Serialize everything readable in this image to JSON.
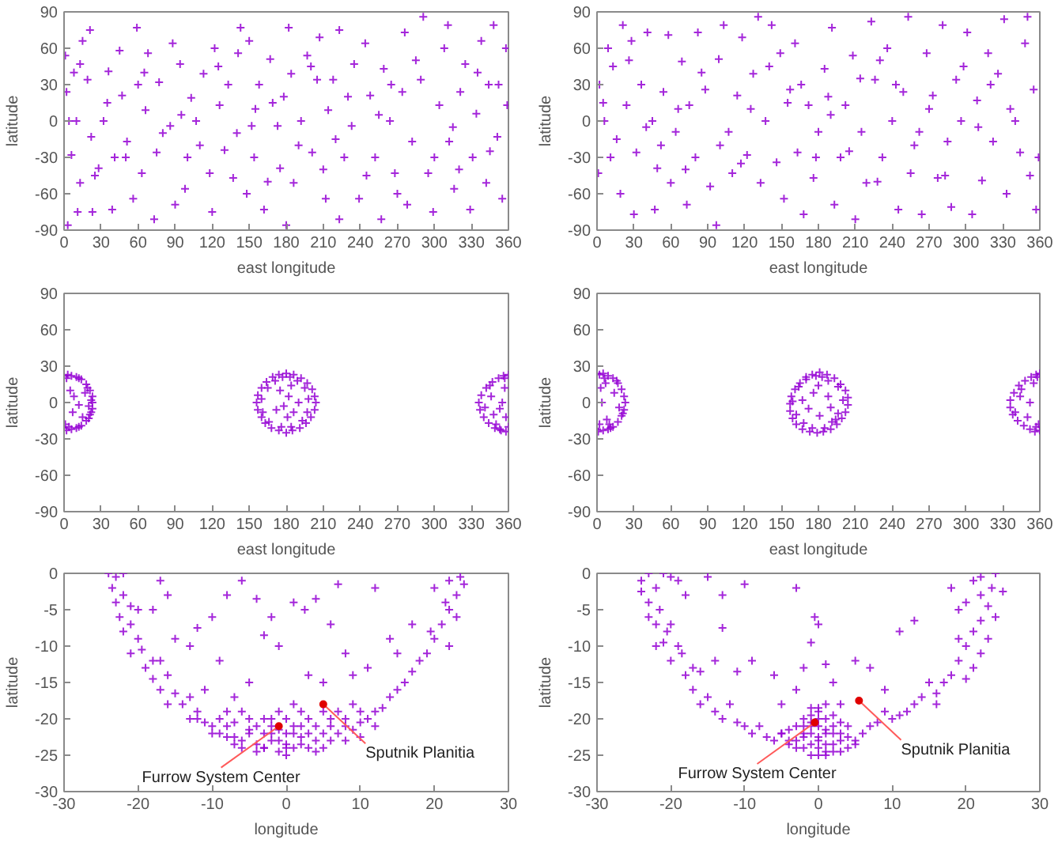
{
  "chart_data": [
    {
      "type": "scatter",
      "xlabel": "east longitude",
      "ylabel": "latitude",
      "color": "#9400d3",
      "marker": "cross",
      "xlim": [
        0,
        360
      ],
      "ylim": [
        -90,
        90
      ],
      "xticks": [
        0,
        30,
        60,
        90,
        120,
        150,
        180,
        210,
        240,
        270,
        300,
        330,
        360
      ],
      "yticks": [
        -90,
        -60,
        -30,
        0,
        30,
        60,
        90
      ],
      "x": [
        1,
        2,
        4,
        6,
        3,
        11,
        13,
        13,
        15,
        19,
        22,
        23,
        21,
        28,
        32,
        36,
        39,
        41,
        45,
        47,
        51,
        56,
        59,
        60,
        63,
        66,
        68,
        73,
        75,
        77,
        86,
        88,
        90,
        94,
        98,
        100,
        103,
        107,
        113,
        118,
        120,
        122,
        126,
        130,
        133,
        137,
        141,
        143,
        148,
        150,
        152,
        154,
        158,
        162,
        167,
        169,
        173,
        175,
        180,
        182,
        184,
        186,
        192,
        197,
        201,
        205,
        207,
        212,
        214,
        218,
        223,
        223,
        227,
        233,
        235,
        239,
        244,
        248,
        252,
        257,
        259,
        264,
        268,
        274,
        276,
        278,
        282,
        289,
        291,
        295,
        299,
        304,
        308,
        311,
        312,
        316,
        321,
        325,
        329,
        331,
        334,
        338,
        342,
        344,
        348,
        351,
        355,
        358,
        359,
        10,
        25,
        35,
        50,
        65,
        80,
        95,
        110,
        125,
        140,
        155,
        165,
        178,
        190,
        200,
        210,
        220,
        230,
        245,
        255,
        265,
        270,
        285,
        300,
        315,
        320,
        335,
        345,
        352,
        8
      ],
      "values": [
        54,
        24,
        0,
        -28,
        -86,
        -75,
        47,
        -51,
        66,
        34,
        -13,
        -75,
        75,
        -39,
        0,
        41,
        -73,
        -30,
        58,
        21,
        -17,
        -64,
        77,
        30,
        -43,
        9,
        56,
        -81,
        -26,
        32,
        -4,
        64,
        -69,
        47,
        -56,
        -30,
        19,
        0,
        39,
        -43,
        -75,
        60,
        13,
        -24,
        30,
        -47,
        56,
        77,
        -60,
        66,
        -4,
        -30,
        30,
        -73,
        51,
        15,
        -4,
        -39,
        -86,
        77,
        39,
        -51,
        0,
        54,
        -26,
        34,
        69,
        -64,
        9,
        34,
        75,
        -81,
        -30,
        -4,
        47,
        -64,
        64,
        21,
        -30,
        -81,
        43,
        0,
        -43,
        24,
        73,
        -69,
        -17,
        34,
        86,
        -43,
        -75,
        13,
        60,
        79,
        -17,
        -56,
        24,
        47,
        -73,
        -30,
        6,
        66,
        -51,
        30,
        79,
        -13,
        -64,
        60,
        13,
        0,
        -45,
        15,
        -30,
        40,
        -10,
        5,
        -20,
        45,
        -10,
        10,
        -50,
        20,
        -20,
        45,
        -40,
        -15,
        20,
        -45,
        5,
        30,
        -60,
        50,
        -30,
        -5,
        -40,
        40,
        -25,
        30,
        40
      ]
    },
    {
      "type": "scatter",
      "xlabel": "east longitude",
      "ylabel": "latitude",
      "color": "#9400d3",
      "marker": "cross",
      "xlim": [
        0,
        360
      ],
      "ylim": [
        -90,
        90
      ],
      "xticks": [
        0,
        30,
        60,
        90,
        120,
        150,
        180,
        210,
        240,
        270,
        300,
        330,
        360
      ],
      "yticks": [
        -90,
        -60,
        -30,
        0,
        30,
        60,
        90
      ],
      "x": [
        1,
        2,
        9,
        6,
        11,
        13,
        19,
        21,
        24,
        28,
        30,
        32,
        36,
        41,
        45,
        47,
        49,
        54,
        58,
        60,
        64,
        69,
        73,
        75,
        80,
        82,
        88,
        92,
        97,
        99,
        103,
        107,
        110,
        114,
        118,
        122,
        127,
        131,
        133,
        137,
        142,
        146,
        149,
        152,
        157,
        161,
        163,
        168,
        172,
        176,
        180,
        185,
        191,
        193,
        198,
        202,
        208,
        210,
        215,
        219,
        223,
        226,
        232,
        236,
        240,
        245,
        249,
        253,
        255,
        262,
        264,
        268,
        273,
        277,
        281,
        285,
        288,
        292,
        296,
        301,
        305,
        309,
        313,
        318,
        322,
        326,
        331,
        333,
        340,
        344,
        348,
        350,
        355,
        357,
        359,
        5,
        16,
        40,
        52,
        66,
        85,
        100,
        117,
        125,
        140,
        155,
        166,
        178,
        188,
        205,
        214,
        228,
        243,
        258,
        270,
        283,
        298,
        310,
        320,
        336,
        352,
        26,
        72,
        230,
        190
      ],
      "values": [
        -43,
        30,
        60,
        0,
        -30,
        45,
        -60,
        79,
        13,
        66,
        -77,
        -26,
        30,
        73,
        0,
        -73,
        -39,
        24,
        71,
        -51,
        -9,
        49,
        -69,
        13,
        -30,
        73,
        26,
        -54,
        -86,
        51,
        79,
        -9,
        -43,
        21,
        69,
        -28,
        39,
        86,
        -51,
        0,
        79,
        -34,
        56,
        -64,
        26,
        64,
        -26,
        -77,
        13,
        -47,
        -9,
        43,
        77,
        -69,
        -30,
        13,
        54,
        -81,
        -9,
        -51,
        82,
        34,
        -30,
        60,
        0,
        -73,
        24,
        86,
        -43,
        -9,
        -77,
        56,
        21,
        -47,
        79,
        -17,
        -71,
        34,
        0,
        73,
        -77,
        17,
        -49,
        56,
        -17,
        39,
        84,
        -60,
        0,
        -26,
        64,
        86,
        26,
        -73,
        -30,
        15,
        -15,
        -5,
        -20,
        10,
        40,
        -20,
        -35,
        10,
        45,
        15,
        30,
        -30,
        20,
        -25,
        35,
        -50,
        30,
        -20,
        10,
        -45,
        45,
        -5,
        30,
        10,
        -45,
        50,
        -40,
        50,
        5
      ]
    },
    {
      "type": "scatter",
      "xlabel": "east longitude",
      "ylabel": "latitude",
      "color": "#9400d3",
      "marker": "cross",
      "xlim": [
        0,
        360
      ],
      "ylim": [
        -90,
        90
      ],
      "xticks": [
        0,
        30,
        60,
        90,
        120,
        150,
        180,
        210,
        240,
        270,
        300,
        330,
        360
      ],
      "yticks": [
        -90,
        -60,
        -30,
        0,
        30,
        60,
        90
      ],
      "x": [
        0,
        3,
        6,
        10,
        14,
        18,
        21,
        23,
        23,
        23,
        21,
        18,
        14,
        10,
        6,
        2,
        0,
        1,
        5,
        8,
        12,
        7,
        15,
        17,
        20,
        2,
        4,
        12,
        12,
        19,
        20,
        22,
        22,
        180,
        186,
        192,
        197,
        201,
        203,
        204,
        203,
        200,
        196,
        191,
        185,
        180,
        174,
        168,
        163,
        160,
        157,
        156,
        157,
        160,
        164,
        169,
        174,
        183,
        177,
        189,
        171,
        195,
        165,
        198,
        160,
        197,
        161,
        193,
        166,
        184,
        176,
        182,
        178,
        186,
        175,
        190,
        172,
        184,
        181,
        360,
        356,
        352,
        347,
        342,
        338,
        336,
        337,
        340,
        344,
        349,
        354,
        358,
        360,
        350,
        345,
        341,
        346,
        353,
        357,
        358,
        355,
        348,
        357,
        353
      ],
      "values": [
        22,
        23,
        22,
        21,
        19,
        15,
        10,
        5,
        0,
        -5,
        -10,
        -15,
        -19,
        -21,
        -22,
        -23,
        -21,
        -18,
        10,
        5,
        -2,
        -8,
        -12,
        8,
        -3,
        20,
        -20,
        20,
        -20,
        12,
        -13,
        2,
        -8,
        24,
        23,
        20,
        16,
        11,
        5,
        0,
        -6,
        -12,
        -17,
        -21,
        -23,
        -25,
        -23,
        -21,
        -17,
        -12,
        -6,
        0,
        6,
        12,
        17,
        21,
        23,
        21,
        21,
        18,
        18,
        12,
        12,
        3,
        3,
        -8,
        -8,
        -15,
        -16,
        -20,
        -20,
        5,
        -3,
        -8,
        10,
        0,
        -6,
        14,
        -12,
        23,
        22,
        20,
        17,
        12,
        6,
        0,
        -6,
        -12,
        -17,
        -21,
        -23,
        -24,
        -20,
        -18,
        14,
        -4,
        5,
        -5,
        12,
        -12,
        0,
        -10,
        20,
        -22
      ]
    },
    {
      "type": "scatter",
      "xlabel": "east longitude",
      "ylabel": "latitude",
      "color": "#9400d3",
      "marker": "cross",
      "xlim": [
        0,
        360
      ],
      "ylim": [
        -90,
        90
      ],
      "xticks": [
        0,
        30,
        60,
        90,
        120,
        150,
        180,
        210,
        240,
        270,
        300,
        330,
        360
      ],
      "yticks": [
        -90,
        -60,
        -30,
        0,
        30,
        60,
        90
      ],
      "x": [
        0,
        2,
        5,
        9,
        13,
        17,
        20,
        22,
        23,
        22,
        20,
        17,
        13,
        9,
        5,
        1,
        0,
        3,
        7,
        10,
        14,
        18,
        2,
        6,
        11,
        16,
        21,
        4,
        8,
        181,
        187,
        193,
        198,
        202,
        204,
        204,
        202,
        199,
        195,
        190,
        184,
        179,
        173,
        167,
        162,
        159,
        157,
        157,
        158,
        161,
        165,
        170,
        175,
        183,
        178,
        188,
        170,
        196,
        164,
        200,
        159,
        196,
        162,
        191,
        168,
        185,
        175,
        180,
        172,
        188,
        181,
        176,
        190,
        167,
        194,
        360,
        357,
        353,
        348,
        343,
        339,
        336,
        336,
        338,
        342,
        347,
        352,
        356,
        360,
        359,
        345,
        340,
        350,
        355,
        358,
        344,
        352,
        357
      ],
      "values": [
        24,
        23,
        24,
        22,
        20,
        16,
        11,
        5,
        0,
        -6,
        -11,
        -16,
        -20,
        -22,
        -23,
        -24,
        -22,
        12,
        16,
        -18,
        8,
        -4,
        -18,
        20,
        -21,
        18,
        -9,
        0,
        -14,
        25,
        23,
        20,
        15,
        10,
        4,
        -2,
        -8,
        -13,
        -18,
        -22,
        -24,
        -25,
        -24,
        -22,
        -18,
        -13,
        -7,
        -1,
        5,
        11,
        16,
        21,
        23,
        21,
        22,
        18,
        19,
        13,
        13,
        2,
        1,
        -9,
        -10,
        -16,
        -17,
        -21,
        -21,
        14,
        -5,
        5,
        -11,
        8,
        -4,
        2,
        -14,
        24,
        23,
        21,
        18,
        14,
        8,
        2,
        -4,
        -10,
        -15,
        -19,
        -22,
        -24,
        -23,
        -18,
        11,
        -8,
        -12,
        16,
        21,
        5,
        0,
        -20
      ]
    },
    {
      "type": "scatter",
      "xlabel": "longitude",
      "ylabel": "latitude",
      "color": "#9400d3",
      "marker": "cross",
      "xlim": [
        -30,
        30
      ],
      "ylim": [
        -30,
        0
      ],
      "xticks": [
        -30,
        -20,
        -10,
        0,
        10,
        20,
        30
      ],
      "yticks": [
        -30,
        -25,
        -20,
        -15,
        -10,
        -5,
        0
      ],
      "x": [
        -24,
        -23,
        -22,
        -23.5,
        -22,
        -23,
        -21,
        -22.5,
        -20,
        -21,
        -22,
        -20,
        -19.5,
        -21,
        -18,
        -19,
        -17,
        -18,
        -16,
        -17,
        -15,
        -16,
        -14,
        -13,
        -12,
        -13,
        -11,
        -10,
        -9,
        -8,
        -7,
        -6,
        -5,
        -4,
        -3,
        -2,
        -1,
        0,
        1,
        2,
        3,
        4,
        5,
        6,
        7,
        8,
        9,
        10,
        11,
        12,
        13,
        14,
        15,
        16,
        17,
        18,
        19,
        20,
        19.5,
        21,
        22,
        21.5,
        23,
        22,
        23.5,
        24,
        20,
        22,
        17,
        23,
        -18,
        -15,
        -12,
        -10,
        -8,
        -6,
        -4,
        -3,
        -1,
        -2,
        1,
        2.5,
        4,
        6,
        7,
        8,
        9,
        12,
        14,
        15,
        11,
        5,
        3,
        -5,
        -7,
        -9,
        -11,
        -13,
        -16,
        -17,
        -3,
        -2,
        -1,
        0,
        1,
        2,
        -1,
        -2,
        0,
        1,
        3,
        4,
        -4,
        -3,
        0,
        2,
        -5,
        6,
        5,
        -6,
        7,
        -8,
        9,
        -9,
        8,
        10,
        -7,
        -6,
        -4,
        -2,
        0,
        2,
        4,
        6,
        -5,
        -3,
        -1,
        1,
        3,
        5,
        -7,
        -8,
        8,
        -10,
        10,
        -12,
        12
      ],
      "values": [
        0,
        -0.5,
        0,
        -2,
        -3,
        -4,
        -4.5,
        -6,
        -5,
        -7,
        -8,
        -9,
        -10.5,
        -11,
        -12,
        -13,
        -12,
        -14.5,
        -14,
        -16,
        -16.5,
        -18,
        -18,
        -17,
        -19,
        -20,
        -20.5,
        -21,
        -22,
        -21,
        -22.5,
        -23,
        -22,
        -23.5,
        -24,
        -23,
        -24.5,
        -25,
        -24,
        -23.5,
        -24,
        -23,
        -22,
        -23,
        -22,
        -21,
        -21.5,
        -20.5,
        -20,
        -19,
        -18.5,
        -17,
        -16,
        -15,
        -13.5,
        -12,
        -11,
        -9,
        -8,
        -7,
        -5,
        -4,
        -3,
        -1,
        -0.5,
        -1.5,
        -2,
        -10,
        -7,
        -6,
        -5,
        -9,
        -7.5,
        -6,
        -3,
        -1,
        -3.5,
        -8.5,
        -10,
        -6,
        -4,
        -5,
        -3.5,
        -7,
        -1.5,
        -11,
        -14,
        -2,
        -9,
        -11,
        -13,
        -15,
        -14,
        -15,
        -17,
        -12,
        -16,
        -10,
        -3,
        -1,
        -20,
        -21,
        -19,
        -22,
        -21,
        -22.5,
        -23,
        -22,
        -20,
        -18,
        -20,
        -21,
        -21,
        -22,
        -23.5,
        -19,
        -20,
        -20,
        -19,
        -19,
        -19,
        -19,
        -18,
        -20,
        -20,
        -19,
        -20.5,
        -24,
        -24.5,
        -20,
        -24,
        -21,
        -24.5,
        -21,
        -21.5,
        -24,
        -21.5,
        -22,
        -22,
        -24,
        -23.5,
        -22.5,
        -23,
        -22,
        -22.5,
        -20,
        -21
      ],
      "annotations": [
        {
          "text": "Furrow System Center",
          "x": -1,
          "y": -21
        },
        {
          "text": "Sputnik Planitia",
          "x": 5,
          "y": -18
        }
      ]
    },
    {
      "type": "scatter",
      "xlabel": "longitude",
      "ylabel": "latitude",
      "color": "#9400d3",
      "marker": "cross",
      "xlim": [
        -30,
        30
      ],
      "ylim": [
        -30,
        0
      ],
      "xticks": [
        -30,
        -20,
        -10,
        0,
        10,
        20,
        30
      ],
      "yticks": [
        -30,
        -25,
        -20,
        -15,
        -10,
        -5,
        0
      ],
      "x": [
        -24,
        -23,
        -21,
        -20,
        -24,
        -22,
        -23,
        -21.5,
        -23,
        -22,
        -20.5,
        -21,
        -19,
        -20,
        -18.5,
        -17,
        -18,
        -16,
        -17,
        -15,
        -16,
        -14,
        -12,
        -13,
        -11,
        -10,
        -9,
        -8,
        -7,
        -6,
        -5,
        -4,
        -18,
        -19,
        -22,
        -20,
        24,
        22,
        21,
        23.5,
        25,
        22,
        23,
        20,
        24,
        22,
        19,
        21,
        23,
        20,
        22,
        19,
        21,
        18,
        20,
        17,
        16,
        15,
        14,
        13,
        12,
        11,
        10,
        9,
        8,
        7,
        6,
        5,
        4,
        18,
        19,
        16,
        13,
        11,
        -13,
        -10,
        -15,
        -3,
        -0.5,
        -1,
        0,
        1,
        -2,
        -9,
        -6,
        -3,
        5,
        7,
        2,
        -11,
        -14,
        9,
        -5,
        3,
        -13,
        -3,
        -2,
        -1,
        0,
        1,
        2,
        3,
        -2,
        -1,
        0,
        1,
        2,
        -3,
        0,
        1,
        -1,
        2,
        3,
        -2,
        0,
        1,
        -4,
        4,
        0,
        -1,
        -3,
        -2,
        -1,
        0,
        1,
        2,
        3,
        -2,
        -1,
        0,
        1,
        2,
        3,
        -4,
        4,
        -5,
        5,
        -1,
        0,
        1
      ],
      "values": [
        -1,
        0,
        0,
        -0.5,
        -2.5,
        -2,
        -4,
        -5,
        -6,
        -7,
        -8,
        -9.5,
        -10,
        -12,
        -11,
        -13,
        -14,
        -13.5,
        -16,
        -17,
        -18,
        -19,
        -18,
        -20,
        -20.5,
        -21,
        -22,
        -21,
        -22.5,
        -23,
        -22,
        -23.5,
        -3,
        -1,
        -10,
        -7,
        0,
        -0.5,
        -1,
        -2,
        -2.5,
        -3,
        -4.5,
        -4,
        -6,
        -6.5,
        -5,
        -8,
        -9,
        -10,
        -11,
        -12,
        -13,
        -14,
        -14.5,
        -15,
        -16.5,
        -15,
        -17,
        -18,
        -19,
        -19.5,
        -20,
        -19,
        -20.5,
        -21,
        -22,
        -23,
        -22.5,
        -2,
        -9,
        -18,
        -6.5,
        -8,
        -7.5,
        -1.5,
        -0.5,
        -2,
        -6,
        -9.5,
        -7,
        -12.5,
        -13,
        -12,
        -14,
        -16,
        -12,
        -13,
        -15,
        -13.5,
        -12,
        -16,
        -18,
        -18,
        -3,
        -21,
        -20,
        -22,
        -21,
        -20,
        -22,
        -23,
        -24,
        -25,
        -24,
        -23.5,
        -24.5,
        -23,
        -19,
        -18,
        -18.5,
        -21,
        -20.5,
        -22.5,
        -22.5,
        -25,
        -21.5,
        -21,
        -20,
        -20.5,
        -24,
        -22,
        -23.5,
        -23,
        -22,
        -23.5,
        -24.5,
        -21,
        -19.5,
        -25,
        -21.5,
        -19.5,
        -22,
        -23,
        -24,
        -22,
        -23.5,
        -21,
        -18.5,
        -24.5
      ],
      "annotations": [
        {
          "text": "Furrow System Center",
          "x": -0.5,
          "y": -20.5
        },
        {
          "text": "Sputnik Planitia",
          "x": 5.5,
          "y": -17.5
        }
      ]
    }
  ]
}
